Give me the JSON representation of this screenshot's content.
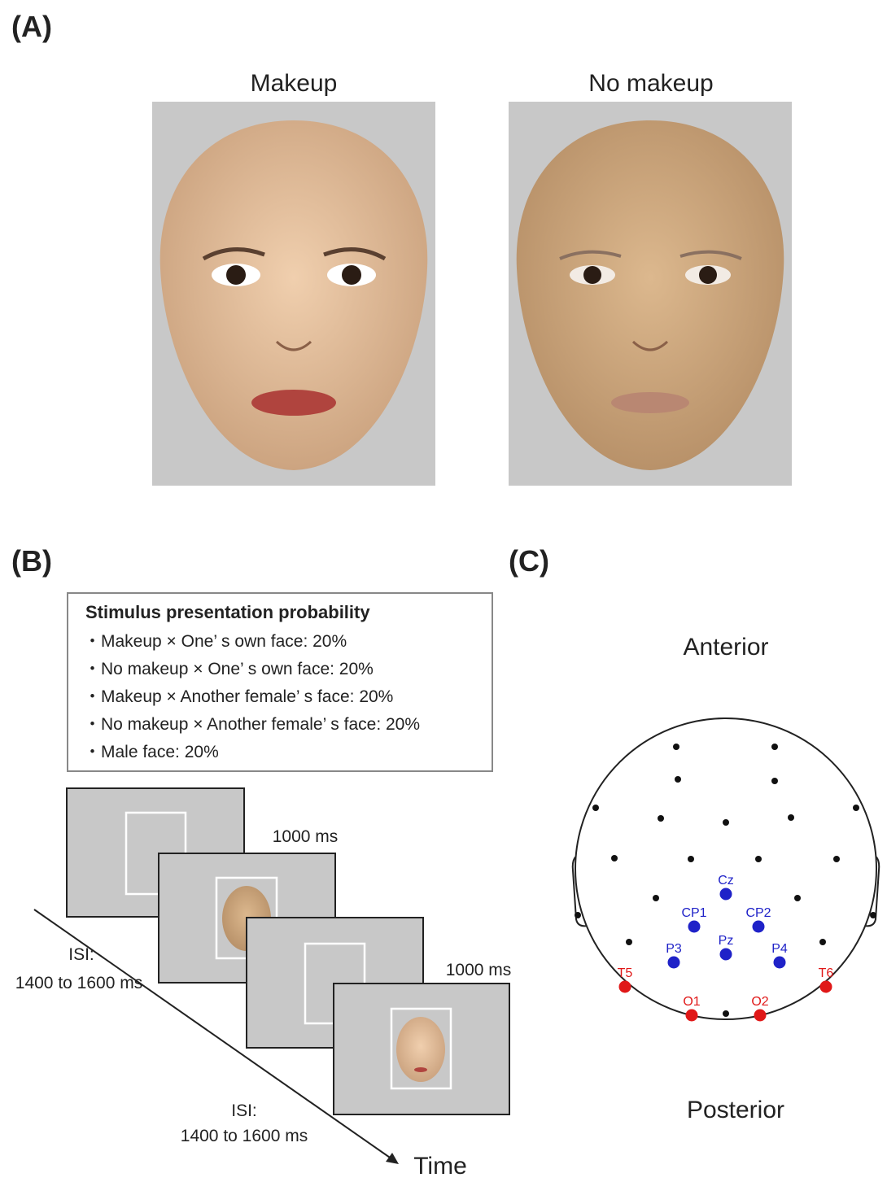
{
  "panels": {
    "a": "(A)",
    "b": "(B)",
    "c": "(C)"
  },
  "faces": [
    "Makeup",
    "No makeup"
  ],
  "probability": {
    "title": "Stimulus presentation probability",
    "items": [
      "・Makeup × One’ s own face: 20%",
      "・No makeup × One’ s own face: 20%",
      "・Makeup × Another female’ s face: 20%",
      "・No makeup × Another female’ s face: 20%",
      "・Male face: 20%"
    ]
  },
  "timeline": {
    "durations": [
      "1000 ms",
      "1000 ms"
    ],
    "isi": [
      [
        "ISI:",
        "1400 to 1600 ms"
      ],
      [
        "ISI:",
        "1400 to 1600 ms"
      ]
    ],
    "axis": "Time"
  },
  "head": {
    "anterior": "Anterior",
    "posterior": "Posterior",
    "electrodes": [
      "Cz",
      "CP1",
      "CP2",
      "Pz",
      "P3",
      "P4",
      "T5",
      "T6",
      "O1",
      "O2"
    ]
  }
}
